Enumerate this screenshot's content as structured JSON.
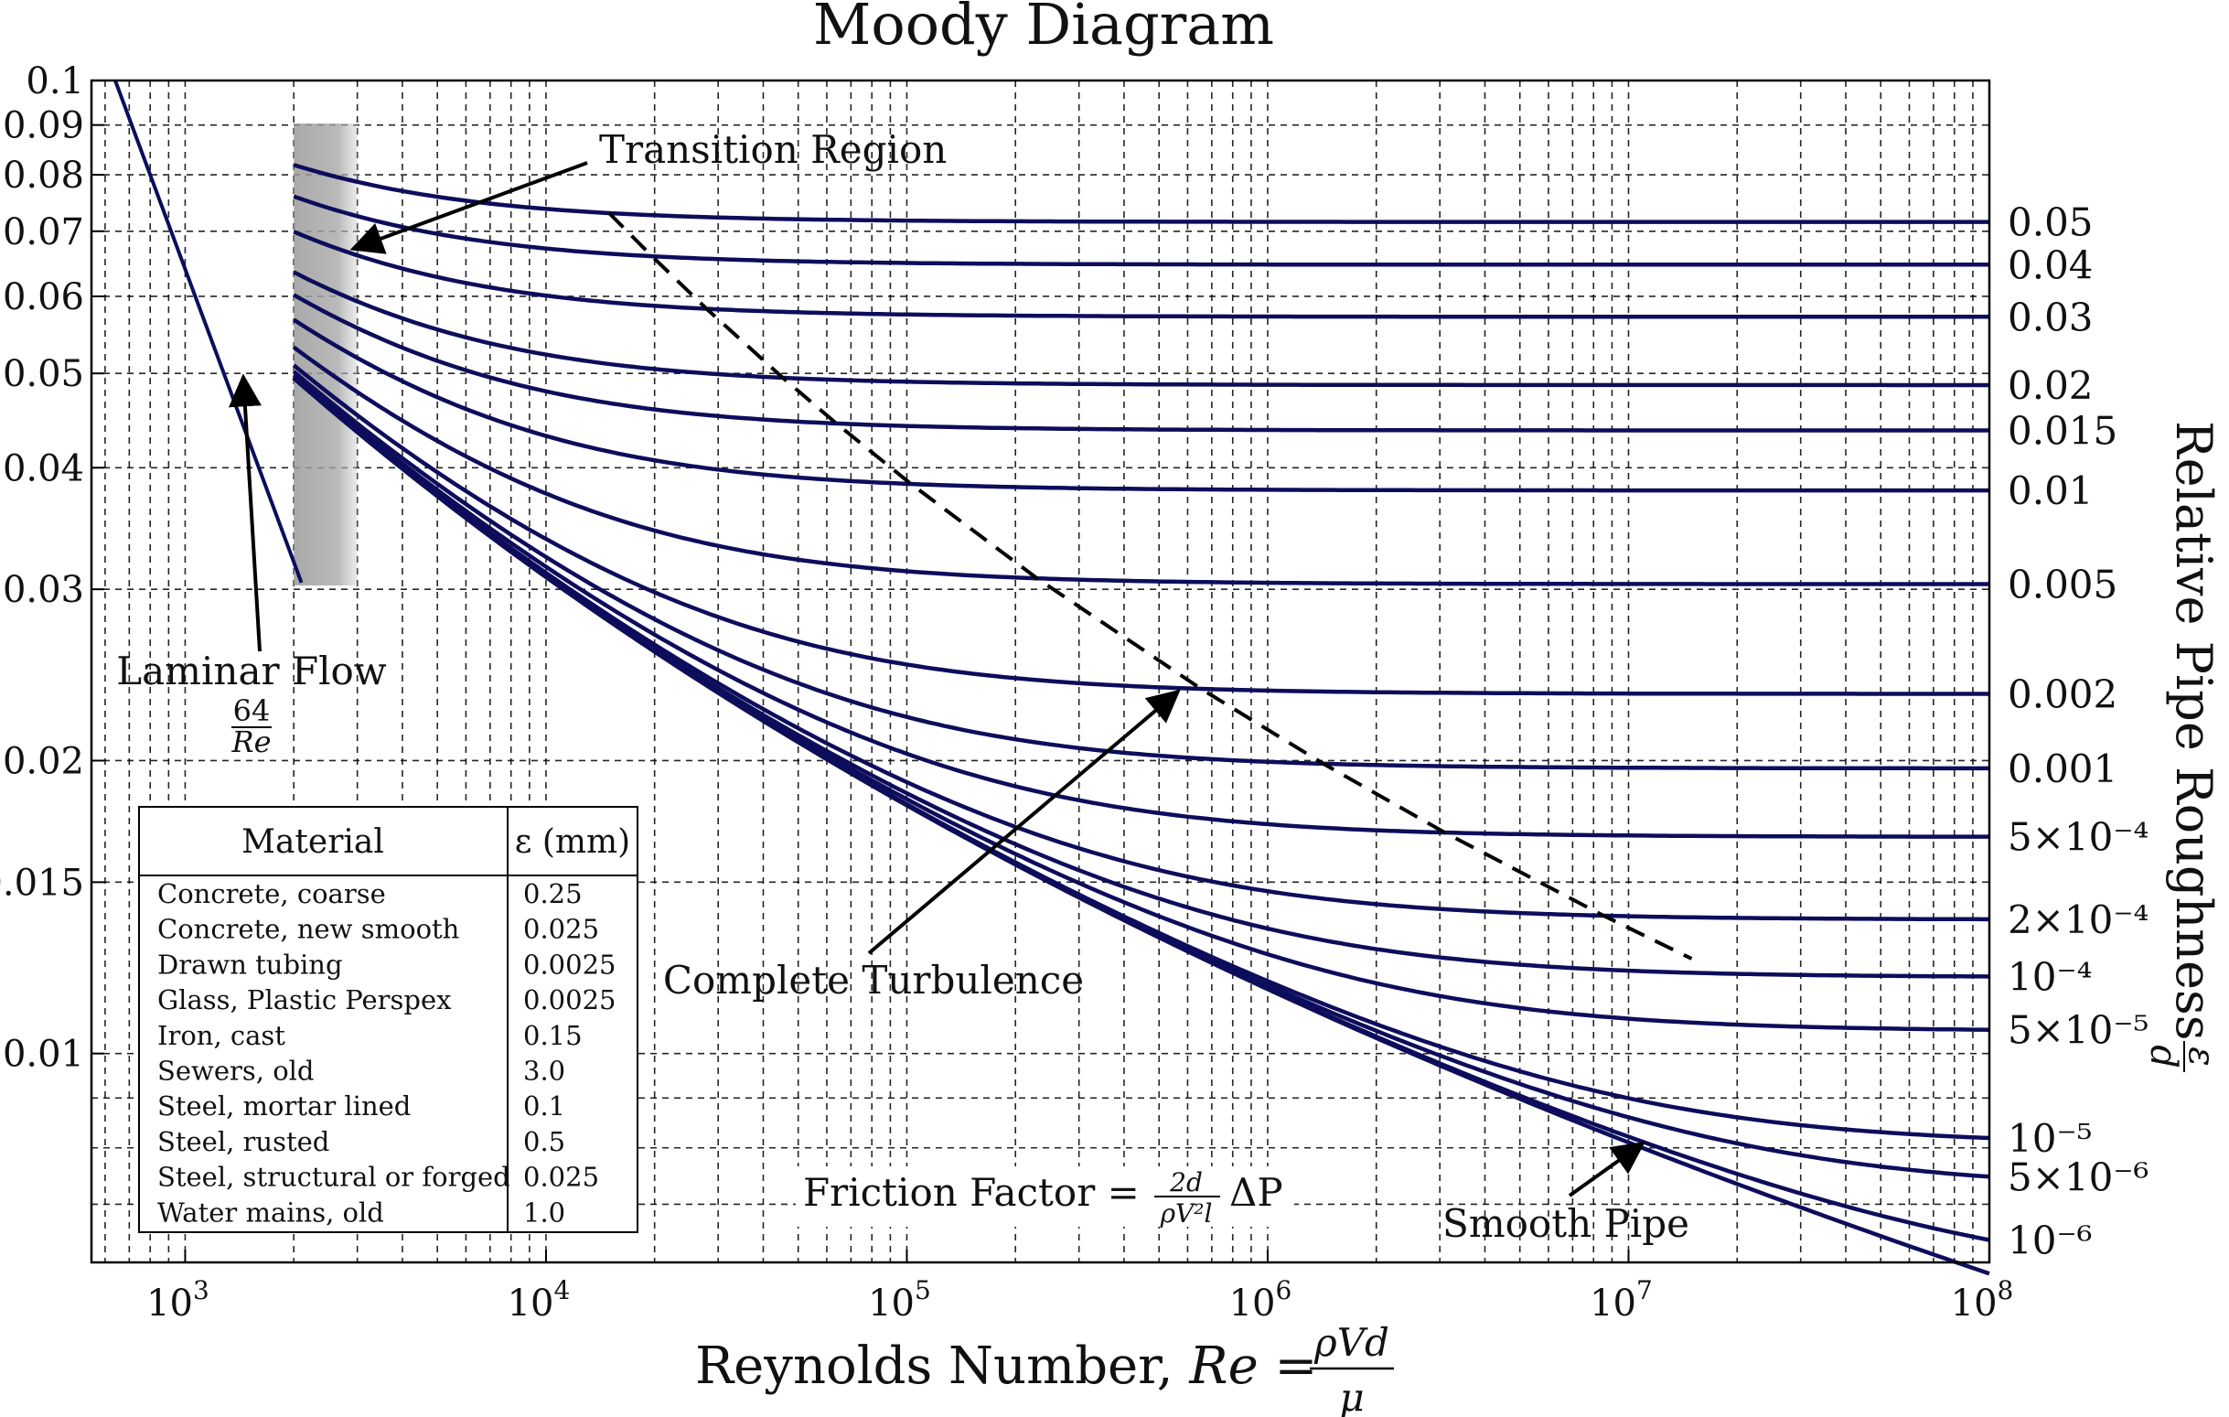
{
  "chart_data": {
    "type": "line",
    "title": "Moody Diagram",
    "xlabel": "Reynolds Number, Re = ρVd/μ",
    "xlabel_text": "Reynolds Number, ",
    "xlabel_re": "Re",
    "xlabel_eq": " = ",
    "xlabel_num": "ρVd",
    "xlabel_den": "μ",
    "ylabel_right": "Relative Pipe Roughness ε/d",
    "ylabel_right_text": "Relative Pipe Roughness",
    "ylabel_right_num": "ε",
    "ylabel_right_den": "d",
    "x_scale": "log",
    "y_scale": "log",
    "xlim": [
      550,
      100000000
    ],
    "ylim": [
      0.0061,
      0.1
    ],
    "x_ticks": [
      "10^3",
      "10^4",
      "10^5",
      "10^6",
      "10^7",
      "10^8"
    ],
    "y_ticks": [
      "0.1",
      "0.09",
      "0.08",
      "0.07",
      "0.06",
      "0.05",
      "0.04",
      "0.03",
      "0.02",
      "0.015",
      "0.01"
    ],
    "grid": true,
    "line_color": "#0d0d5c",
    "laminar": {
      "label": "Laminar Flow",
      "formula_num": "64",
      "formula_den": "Re",
      "re_range": [
        640,
        2100
      ]
    },
    "transition_region": {
      "label": "Transition Region",
      "re_range": [
        2000,
        3000
      ]
    },
    "turbulent_re_range": [
      2000,
      100000000
    ],
    "roughness_series": [
      {
        "label": "0.05",
        "value": 0.05
      },
      {
        "label": "0.04",
        "value": 0.04
      },
      {
        "label": "0.03",
        "value": 0.03
      },
      {
        "label": "0.02",
        "value": 0.02
      },
      {
        "label": "0.015",
        "value": 0.015
      },
      {
        "label": "0.01",
        "value": 0.01
      },
      {
        "label": "0.005",
        "value": 0.005
      },
      {
        "label": "0.002",
        "value": 0.002
      },
      {
        "label": "0.001",
        "value": 0.001
      },
      {
        "label": "5×10⁻⁴",
        "value": 0.0005
      },
      {
        "label": "2×10⁻⁴",
        "value": 0.0002
      },
      {
        "label": "10⁻⁴",
        "value": 0.0001
      },
      {
        "label": "5×10⁻⁵",
        "value": 5e-05
      },
      {
        "label": "10⁻⁵",
        "value": 1e-05
      },
      {
        "label": "5×10⁻⁶",
        "value": 5e-06
      },
      {
        "label": "10⁻⁶",
        "value": 1e-06
      },
      {
        "label": "",
        "value": 0
      }
    ],
    "complete_turbulence_boundary": {
      "label": "Complete Turbulence",
      "style": "dashed"
    },
    "smooth_pipe_label": "Smooth Pipe",
    "friction_factor": {
      "label": "Friction Factor = ",
      "num": "2d",
      "den": "ρV²l",
      "tail": "ΔP"
    },
    "material_table": {
      "headers": [
        "Material",
        "ε (mm)"
      ],
      "rows": [
        [
          "Concrete, coarse",
          "0.25"
        ],
        [
          "Concrete, new smooth",
          "0.025"
        ],
        [
          "Drawn tubing",
          "0.0025"
        ],
        [
          "Glass, Plastic Perspex",
          "0.0025"
        ],
        [
          "Iron, cast",
          "0.15"
        ],
        [
          "Sewers, old",
          "3.0"
        ],
        [
          "Steel, mortar lined",
          "0.1"
        ],
        [
          "Steel, rusted",
          "0.5"
        ],
        [
          "Steel, structural or forged",
          "0.025"
        ],
        [
          "Water mains, old",
          "1.0"
        ]
      ]
    }
  }
}
